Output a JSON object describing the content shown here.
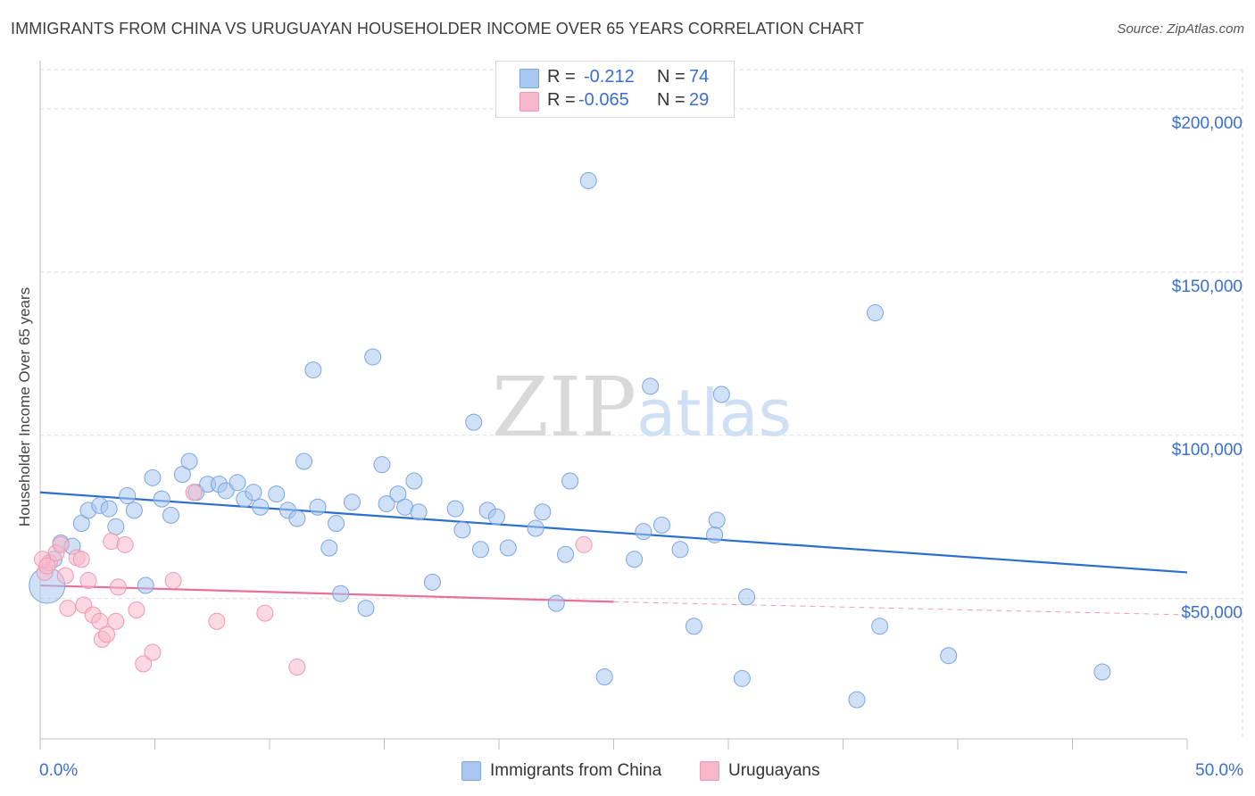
{
  "title": "IMMIGRANTS FROM CHINA VS URUGUAYAN HOUSEHOLDER INCOME OVER 65 YEARS CORRELATION CHART",
  "source": "Source: ZipAtlas.com",
  "watermark": {
    "zip": "ZIP",
    "atlas": "atlas"
  },
  "legend": {
    "rows": [
      {
        "r_label": "R =",
        "r_value": "-0.212",
        "n_label": "N =",
        "n_value": "74",
        "color": "#a9c7f0"
      },
      {
        "r_label": "R =",
        "r_value": "-0.065",
        "n_label": "N =",
        "n_value": "29",
        "color": "#f7b8cb"
      }
    ]
  },
  "bottom_legend": [
    {
      "label": "Immigrants from China",
      "color": "#a9c7f0"
    },
    {
      "label": "Uruguayans",
      "color": "#f7b8cb"
    }
  ],
  "chart_data": {
    "type": "scatter",
    "title": "IMMIGRANTS FROM CHINA VS URUGUAYAN HOUSEHOLDER INCOME OVER 65 YEARS CORRELATION CHART",
    "xlabel": "",
    "ylabel": "Householder Income Over 65 years",
    "xlim": [
      0,
      50
    ],
    "ylim": [
      7000,
      212000
    ],
    "x_tick_labels": [
      "0.0%",
      "50.0%"
    ],
    "y_ticks": [
      50000,
      100000,
      150000,
      200000
    ],
    "y_tick_labels": [
      "$50,000",
      "$100,000",
      "$150,000",
      "$200,000"
    ],
    "grid": true,
    "legend_position": "top-center",
    "series": [
      {
        "name": "Immigrants from China",
        "color": "#a9c7f0",
        "stroke": "#7aa6e0",
        "trend": {
          "x": [
            0,
            50
          ],
          "y": [
            82500,
            58000
          ],
          "color": "#2a6fd0"
        },
        "points": [
          [
            0.3,
            54000
          ],
          [
            0.6,
            62000
          ],
          [
            0.9,
            67000
          ],
          [
            1.4,
            66000
          ],
          [
            1.8,
            73000
          ],
          [
            2.1,
            77000
          ],
          [
            2.6,
            78500
          ],
          [
            3.0,
            77500
          ],
          [
            3.3,
            72000
          ],
          [
            3.8,
            81500
          ],
          [
            4.1,
            77000
          ],
          [
            4.6,
            54000
          ],
          [
            4.9,
            87000
          ],
          [
            5.3,
            80500
          ],
          [
            5.7,
            75500
          ],
          [
            6.2,
            88000
          ],
          [
            6.5,
            92000
          ],
          [
            6.8,
            82500
          ],
          [
            7.3,
            85000
          ],
          [
            7.8,
            85000
          ],
          [
            8.1,
            83000
          ],
          [
            8.6,
            85500
          ],
          [
            8.9,
            80500
          ],
          [
            9.3,
            82500
          ],
          [
            9.6,
            78000
          ],
          [
            10.3,
            82000
          ],
          [
            10.8,
            77000
          ],
          [
            11.2,
            74500
          ],
          [
            11.5,
            92000
          ],
          [
            12.1,
            78000
          ],
          [
            11.9,
            120000
          ],
          [
            12.6,
            65500
          ],
          [
            12.9,
            73000
          ],
          [
            13.1,
            51500
          ],
          [
            13.6,
            79500
          ],
          [
            14.2,
            47000
          ],
          [
            14.5,
            124000
          ],
          [
            14.9,
            91000
          ],
          [
            15.1,
            79000
          ],
          [
            15.6,
            82000
          ],
          [
            15.9,
            78000
          ],
          [
            16.3,
            86000
          ],
          [
            16.5,
            76500
          ],
          [
            17.1,
            55000
          ],
          [
            18.1,
            77500
          ],
          [
            18.4,
            71000
          ],
          [
            18.9,
            104000
          ],
          [
            19.2,
            65000
          ],
          [
            19.5,
            77000
          ],
          [
            19.9,
            75000
          ],
          [
            20.4,
            65500
          ],
          [
            21.6,
            71500
          ],
          [
            21.9,
            76500
          ],
          [
            22.5,
            48500
          ],
          [
            22.9,
            63500
          ],
          [
            23.1,
            86000
          ],
          [
            23.9,
            178000
          ],
          [
            24.6,
            26000
          ],
          [
            25.9,
            62000
          ],
          [
            26.3,
            70500
          ],
          [
            26.6,
            115000
          ],
          [
            27.1,
            72500
          ],
          [
            27.9,
            65000
          ],
          [
            28.5,
            41500
          ],
          [
            29.4,
            69500
          ],
          [
            29.5,
            74000
          ],
          [
            29.7,
            112500
          ],
          [
            30.6,
            25500
          ],
          [
            30.8,
            50500
          ],
          [
            35.6,
            19000
          ],
          [
            36.4,
            137500
          ],
          [
            36.6,
            41500
          ],
          [
            39.6,
            32500
          ],
          [
            46.3,
            27500
          ]
        ]
      },
      {
        "name": "Uruguayans",
        "color": "#f7b8cb",
        "stroke": "#ee98b2",
        "trend": {
          "x": [
            0,
            25
          ],
          "y": [
            54000,
            49000
          ],
          "dash_to_x": 50,
          "dash_to_y": 45000,
          "color": "#e8709a"
        },
        "points": [
          [
            0.2,
            58000
          ],
          [
            0.4,
            61000
          ],
          [
            0.7,
            64000
          ],
          [
            0.9,
            66500
          ],
          [
            1.1,
            57000
          ],
          [
            1.2,
            47000
          ],
          [
            1.6,
            62500
          ],
          [
            1.8,
            62000
          ],
          [
            1.9,
            48000
          ],
          [
            2.1,
            55500
          ],
          [
            2.3,
            45000
          ],
          [
            2.6,
            43000
          ],
          [
            2.7,
            37500
          ],
          [
            2.9,
            39000
          ],
          [
            3.1,
            67500
          ],
          [
            3.3,
            43000
          ],
          [
            3.4,
            53500
          ],
          [
            3.7,
            66500
          ],
          [
            4.2,
            46500
          ],
          [
            4.5,
            30000
          ],
          [
            4.9,
            33500
          ],
          [
            5.8,
            55500
          ],
          [
            6.7,
            82500
          ],
          [
            7.7,
            43000
          ],
          [
            9.8,
            45500
          ],
          [
            11.2,
            29000
          ],
          [
            23.7,
            66500
          ],
          [
            0.1,
            62000
          ],
          [
            0.3,
            60000
          ]
        ]
      }
    ]
  }
}
